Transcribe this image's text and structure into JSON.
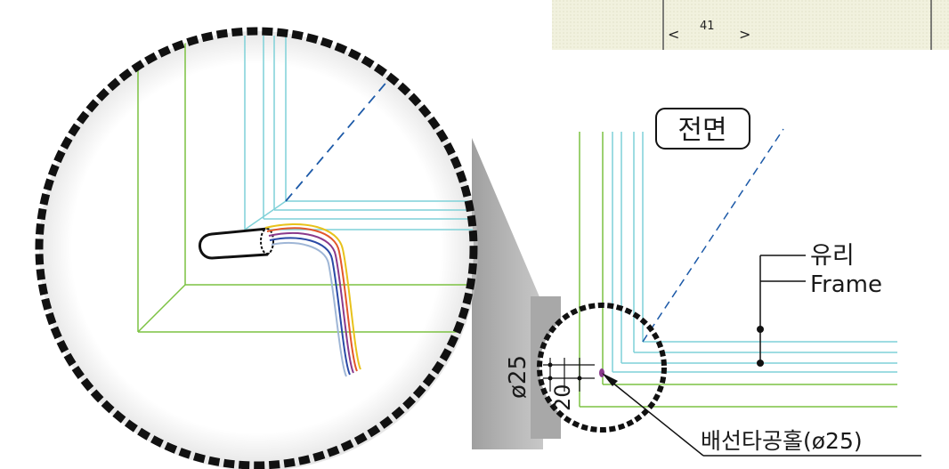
{
  "inset_panel": {
    "value": "41",
    "left_mark": "<",
    "right_mark": ">"
  },
  "labels": {
    "front": "전면",
    "glass": "유리",
    "frame": "Frame",
    "hole": "배선타공홀(ø25)",
    "diameter": "ø25",
    "depth": "20"
  },
  "colors": {
    "green": "#7cc242",
    "cyan": "#7fd1d8",
    "dashed_blue": "#1d5aa8",
    "dots_border": "#111111",
    "shadow": "#b9b9b9",
    "wires": [
      "#e8c21b",
      "#e2572b",
      "#8a3a8c",
      "#2a4aa6",
      "#9fb6d6"
    ]
  }
}
